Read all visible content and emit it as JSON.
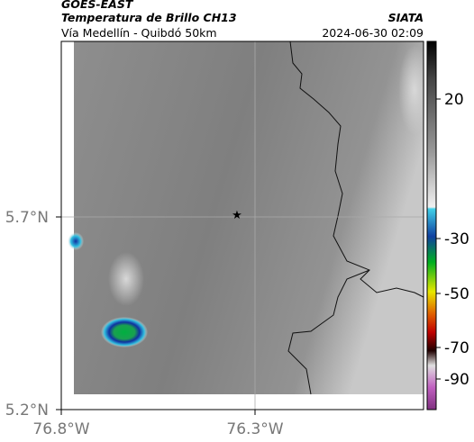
{
  "header": {
    "source": "GOES-EAST",
    "title": "Temperatura de Brillo CH13",
    "subtitle": "Vía Medellín - Quibdó 50km",
    "brand": "SIATA",
    "timestamp": "2024-06-30 02:09"
  },
  "axes": {
    "lat_labels": [
      "5.7°N",
      "5.2°N"
    ],
    "lon_labels": [
      "76.8°W",
      "76.3°W"
    ]
  },
  "colorbar": {
    "labels": [
      "20",
      "-30",
      "-50",
      "-70",
      "-90"
    ]
  }
}
